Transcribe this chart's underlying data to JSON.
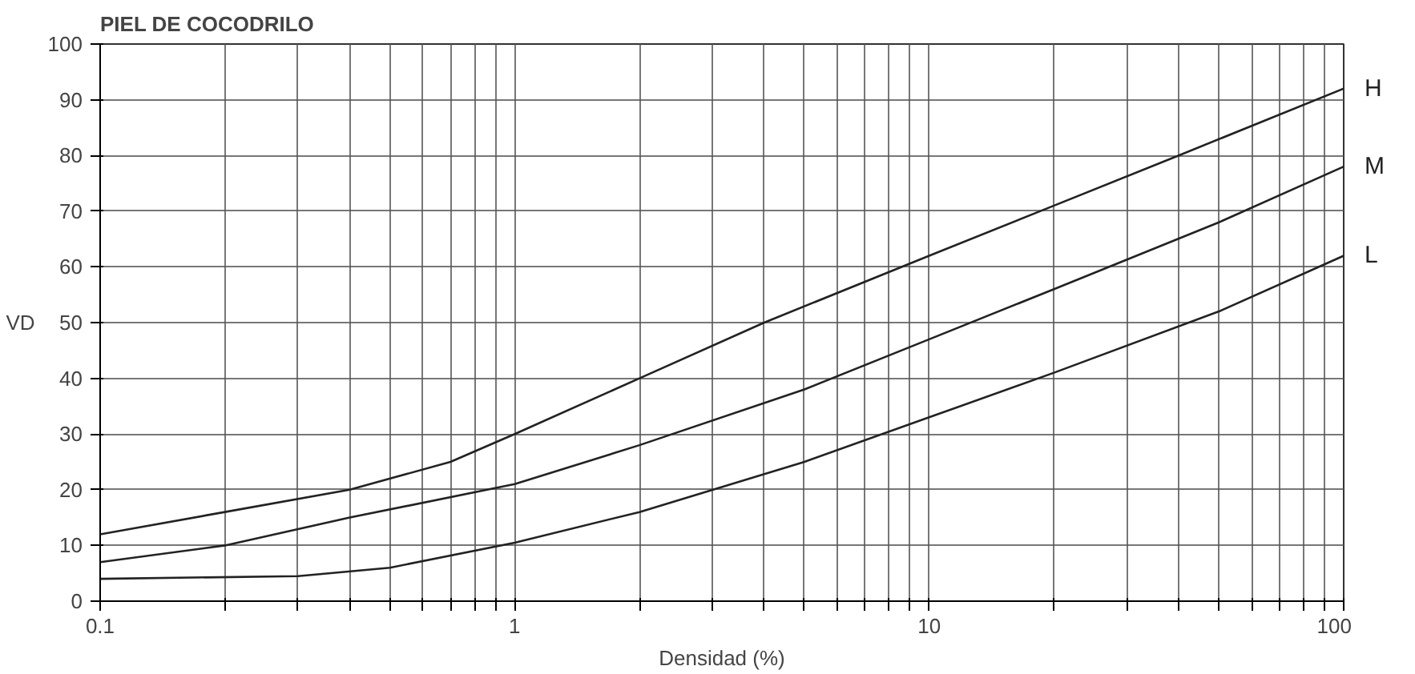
{
  "chart_data": {
    "type": "line",
    "title": "PIEL DE COCODRILO",
    "xlabel": "Densidad (%)",
    "ylabel": "VD",
    "log": "x",
    "xlim": [
      0.1,
      100
    ],
    "ylim": [
      0,
      100
    ],
    "xticks": [
      0.1,
      {
        "value": 0.2,
        "label": null
      },
      {
        "value": 0.3,
        "label": null
      },
      {
        "value": 0.4,
        "label": null
      },
      {
        "value": 0.5,
        "label": null
      },
      {
        "value": 0.6,
        "label": null
      },
      {
        "value": 0.7,
        "label": null
      },
      {
        "value": 0.8,
        "label": null
      },
      {
        "value": 0.9,
        "label": null
      },
      1,
      {
        "value": 2,
        "label": null
      },
      {
        "value": 3,
        "label": null
      },
      {
        "value": 4,
        "label": null
      },
      {
        "value": 5,
        "label": null
      },
      {
        "value": 6,
        "label": null
      },
      {
        "value": 7,
        "label": null
      },
      {
        "value": 8,
        "label": null
      },
      {
        "value": 9,
        "label": null
      },
      10,
      {
        "value": 20,
        "label": null
      },
      {
        "value": 30,
        "label": null
      },
      {
        "value": 40,
        "label": null
      },
      {
        "value": 50,
        "label": null
      },
      {
        "value": 60,
        "label": null
      },
      {
        "value": 70,
        "label": null
      },
      {
        "value": 80,
        "label": null
      },
      {
        "value": 90,
        "label": null
      },
      100
    ],
    "yticks": [
      0,
      10,
      20,
      30,
      40,
      50,
      60,
      70,
      80,
      90,
      100
    ],
    "grid": true,
    "line_style": "solid",
    "series": [
      {
        "name": "H",
        "color": "#222222",
        "x": [
          0.1,
          0.2,
          0.4,
          0.7,
          1,
          2,
          4,
          10,
          20,
          40,
          100
        ],
        "values": [
          12,
          16,
          20,
          25,
          30,
          40,
          50,
          62,
          71,
          80,
          92
        ]
      },
      {
        "name": "M",
        "color": "#222222",
        "x": [
          0.1,
          0.2,
          0.4,
          1,
          2,
          5,
          10,
          20,
          50,
          100
        ],
        "values": [
          7,
          10,
          15,
          21,
          28,
          38,
          47,
          56,
          68,
          78
        ]
      },
      {
        "name": "L",
        "color": "#222222",
        "x": [
          0.1,
          0.3,
          0.5,
          1,
          2,
          5,
          10,
          20,
          50,
          100
        ],
        "values": [
          4,
          4.5,
          6,
          10.5,
          16,
          25,
          33,
          41,
          52,
          62
        ]
      }
    ]
  }
}
